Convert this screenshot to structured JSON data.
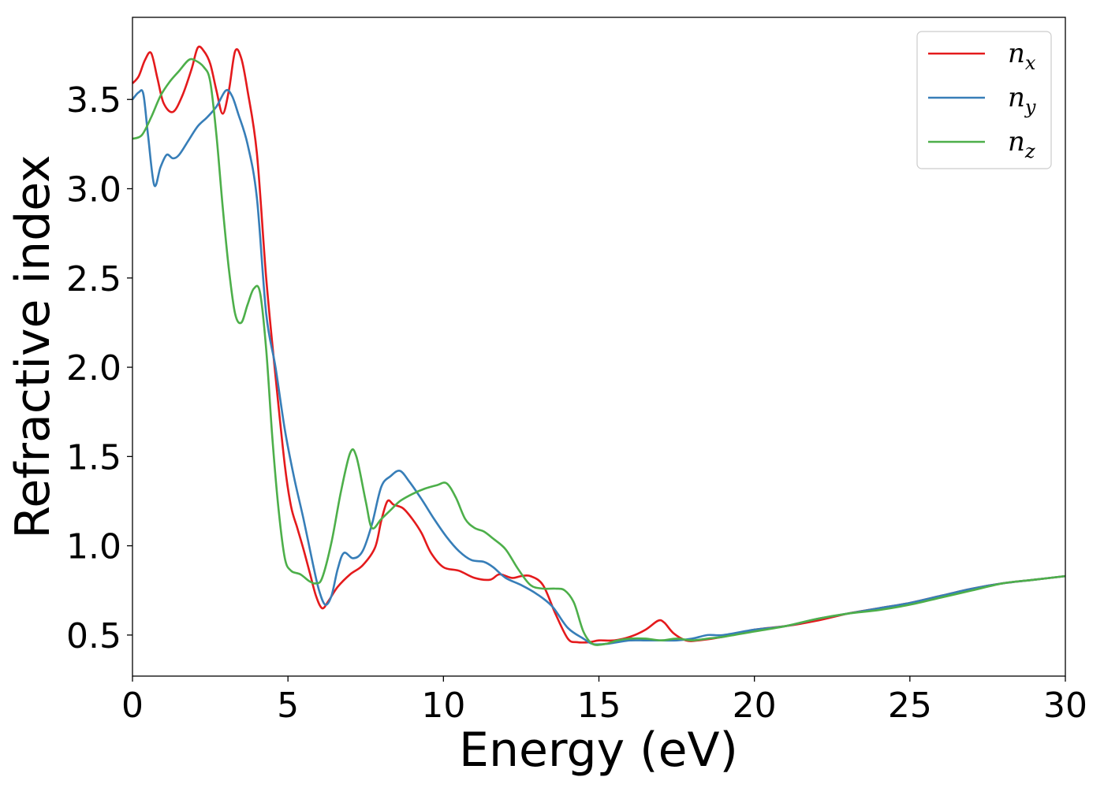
{
  "chart_data": {
    "type": "line",
    "xlabel": "Energy (eV)",
    "ylabel": "Refractive index",
    "xlim": [
      0,
      30
    ],
    "ylim": [
      0.27,
      3.96
    ],
    "xticks": [
      0,
      5,
      10,
      15,
      20,
      25,
      30
    ],
    "yticks": [
      0.5,
      1.0,
      1.5,
      2.0,
      2.5,
      3.0,
      3.5
    ],
    "xtick_labels": [
      "0",
      "5",
      "10",
      "15",
      "20",
      "25",
      "30"
    ],
    "ytick_labels": [
      "0.5",
      "1.0",
      "1.5",
      "2.0",
      "2.5",
      "3.0",
      "3.5"
    ],
    "grid": false,
    "legend_position": "top-right",
    "series": [
      {
        "name": "n_x",
        "label_base": "n",
        "label_sub": "x",
        "color": "#e41a1c",
        "points": [
          [
            0,
            3.59
          ],
          [
            0.2,
            3.63
          ],
          [
            0.4,
            3.72
          ],
          [
            0.6,
            3.76
          ],
          [
            0.8,
            3.62
          ],
          [
            1.0,
            3.48
          ],
          [
            1.3,
            3.43
          ],
          [
            1.6,
            3.52
          ],
          [
            1.9,
            3.67
          ],
          [
            2.1,
            3.79
          ],
          [
            2.3,
            3.77
          ],
          [
            2.5,
            3.7
          ],
          [
            2.7,
            3.55
          ],
          [
            2.9,
            3.42
          ],
          [
            3.1,
            3.55
          ],
          [
            3.3,
            3.77
          ],
          [
            3.5,
            3.73
          ],
          [
            3.7,
            3.55
          ],
          [
            4.0,
            3.2
          ],
          [
            4.3,
            2.5
          ],
          [
            4.6,
            1.95
          ],
          [
            4.9,
            1.45
          ],
          [
            5.1,
            1.22
          ],
          [
            5.3,
            1.1
          ],
          [
            5.5,
            0.98
          ],
          [
            5.7,
            0.85
          ],
          [
            5.9,
            0.72
          ],
          [
            6.1,
            0.65
          ],
          [
            6.3,
            0.69
          ],
          [
            6.6,
            0.77
          ],
          [
            7.0,
            0.84
          ],
          [
            7.4,
            0.89
          ],
          [
            7.8,
            0.99
          ],
          [
            8.0,
            1.14
          ],
          [
            8.2,
            1.25
          ],
          [
            8.4,
            1.23
          ],
          [
            8.7,
            1.21
          ],
          [
            9.0,
            1.15
          ],
          [
            9.3,
            1.07
          ],
          [
            9.6,
            0.96
          ],
          [
            10.0,
            0.88
          ],
          [
            10.5,
            0.86
          ],
          [
            11.0,
            0.82
          ],
          [
            11.5,
            0.81
          ],
          [
            11.8,
            0.84
          ],
          [
            12.2,
            0.82
          ],
          [
            12.5,
            0.83
          ],
          [
            12.8,
            0.83
          ],
          [
            13.2,
            0.78
          ],
          [
            13.6,
            0.62
          ],
          [
            14.0,
            0.48
          ],
          [
            14.3,
            0.46
          ],
          [
            14.7,
            0.46
          ],
          [
            15.0,
            0.47
          ],
          [
            15.5,
            0.47
          ],
          [
            16.0,
            0.49
          ],
          [
            16.5,
            0.53
          ],
          [
            16.9,
            0.58
          ],
          [
            17.1,
            0.57
          ],
          [
            17.4,
            0.51
          ],
          [
            17.8,
            0.47
          ],
          [
            18.2,
            0.47
          ],
          [
            19.0,
            0.49
          ],
          [
            20.0,
            0.53
          ],
          [
            21.0,
            0.55
          ],
          [
            22.0,
            0.58
          ],
          [
            23.0,
            0.62
          ],
          [
            24.0,
            0.65
          ],
          [
            25.0,
            0.68
          ],
          [
            26.0,
            0.72
          ],
          [
            27.0,
            0.76
          ],
          [
            28.0,
            0.79
          ],
          [
            29.0,
            0.81
          ],
          [
            30.0,
            0.83
          ]
        ]
      },
      {
        "name": "n_y",
        "label_base": "n",
        "label_sub": "y",
        "color": "#377eb8",
        "points": [
          [
            0,
            3.5
          ],
          [
            0.2,
            3.54
          ],
          [
            0.35,
            3.53
          ],
          [
            0.5,
            3.3
          ],
          [
            0.7,
            3.02
          ],
          [
            0.9,
            3.12
          ],
          [
            1.1,
            3.19
          ],
          [
            1.3,
            3.17
          ],
          [
            1.5,
            3.19
          ],
          [
            1.8,
            3.27
          ],
          [
            2.1,
            3.35
          ],
          [
            2.4,
            3.4
          ],
          [
            2.7,
            3.46
          ],
          [
            3.0,
            3.55
          ],
          [
            3.2,
            3.52
          ],
          [
            3.4,
            3.42
          ],
          [
            3.7,
            3.25
          ],
          [
            4.0,
            2.95
          ],
          [
            4.3,
            2.3
          ],
          [
            4.6,
            2.0
          ],
          [
            4.9,
            1.65
          ],
          [
            5.2,
            1.38
          ],
          [
            5.5,
            1.15
          ],
          [
            5.8,
            0.9
          ],
          [
            6.0,
            0.75
          ],
          [
            6.2,
            0.67
          ],
          [
            6.4,
            0.72
          ],
          [
            6.6,
            0.87
          ],
          [
            6.8,
            0.96
          ],
          [
            7.1,
            0.93
          ],
          [
            7.4,
            0.97
          ],
          [
            7.7,
            1.12
          ],
          [
            8.0,
            1.33
          ],
          [
            8.3,
            1.39
          ],
          [
            8.6,
            1.42
          ],
          [
            8.9,
            1.36
          ],
          [
            9.3,
            1.26
          ],
          [
            9.7,
            1.15
          ],
          [
            10.1,
            1.05
          ],
          [
            10.5,
            0.97
          ],
          [
            10.9,
            0.92
          ],
          [
            11.3,
            0.91
          ],
          [
            11.6,
            0.88
          ],
          [
            12.0,
            0.82
          ],
          [
            12.5,
            0.78
          ],
          [
            13.0,
            0.73
          ],
          [
            13.5,
            0.66
          ],
          [
            14.0,
            0.54
          ],
          [
            14.5,
            0.48
          ],
          [
            14.8,
            0.45
          ],
          [
            15.2,
            0.45
          ],
          [
            15.6,
            0.46
          ],
          [
            16.0,
            0.47
          ],
          [
            16.5,
            0.47
          ],
          [
            17.0,
            0.47
          ],
          [
            17.5,
            0.47
          ],
          [
            18.0,
            0.48
          ],
          [
            18.5,
            0.5
          ],
          [
            19.0,
            0.5
          ],
          [
            20.0,
            0.53
          ],
          [
            21.0,
            0.55
          ],
          [
            22.0,
            0.59
          ],
          [
            23.0,
            0.62
          ],
          [
            24.0,
            0.65
          ],
          [
            25.0,
            0.68
          ],
          [
            26.0,
            0.72
          ],
          [
            27.0,
            0.76
          ],
          [
            28.0,
            0.79
          ],
          [
            29.0,
            0.81
          ],
          [
            30.0,
            0.83
          ]
        ]
      },
      {
        "name": "n_z",
        "label_base": "n",
        "label_sub": "z",
        "color": "#4daf4a",
        "points": [
          [
            0,
            3.28
          ],
          [
            0.3,
            3.3
          ],
          [
            0.6,
            3.4
          ],
          [
            0.9,
            3.52
          ],
          [
            1.2,
            3.6
          ],
          [
            1.5,
            3.66
          ],
          [
            1.8,
            3.72
          ],
          [
            2.0,
            3.72
          ],
          [
            2.3,
            3.68
          ],
          [
            2.5,
            3.6
          ],
          [
            2.7,
            3.3
          ],
          [
            2.9,
            2.9
          ],
          [
            3.1,
            2.55
          ],
          [
            3.3,
            2.3
          ],
          [
            3.5,
            2.25
          ],
          [
            3.7,
            2.35
          ],
          [
            3.9,
            2.44
          ],
          [
            4.1,
            2.42
          ],
          [
            4.3,
            2.1
          ],
          [
            4.5,
            1.6
          ],
          [
            4.7,
            1.2
          ],
          [
            4.9,
            0.93
          ],
          [
            5.1,
            0.86
          ],
          [
            5.4,
            0.84
          ],
          [
            5.7,
            0.8
          ],
          [
            5.9,
            0.79
          ],
          [
            6.1,
            0.82
          ],
          [
            6.4,
            1.02
          ],
          [
            6.7,
            1.3
          ],
          [
            7.0,
            1.52
          ],
          [
            7.2,
            1.5
          ],
          [
            7.5,
            1.25
          ],
          [
            7.7,
            1.1
          ],
          [
            8.0,
            1.15
          ],
          [
            8.3,
            1.2
          ],
          [
            8.6,
            1.25
          ],
          [
            9.0,
            1.29
          ],
          [
            9.4,
            1.32
          ],
          [
            9.8,
            1.34
          ],
          [
            10.1,
            1.35
          ],
          [
            10.4,
            1.27
          ],
          [
            10.7,
            1.15
          ],
          [
            11.0,
            1.1
          ],
          [
            11.3,
            1.08
          ],
          [
            11.6,
            1.04
          ],
          [
            12.0,
            0.98
          ],
          [
            12.4,
            0.87
          ],
          [
            12.8,
            0.78
          ],
          [
            13.2,
            0.76
          ],
          [
            13.6,
            0.76
          ],
          [
            13.9,
            0.75
          ],
          [
            14.2,
            0.68
          ],
          [
            14.5,
            0.52
          ],
          [
            14.8,
            0.45
          ],
          [
            15.2,
            0.45
          ],
          [
            15.6,
            0.47
          ],
          [
            16.0,
            0.48
          ],
          [
            16.5,
            0.48
          ],
          [
            17.0,
            0.47
          ],
          [
            17.5,
            0.48
          ],
          [
            18.0,
            0.47
          ],
          [
            18.5,
            0.48
          ],
          [
            19.0,
            0.49
          ],
          [
            20.0,
            0.52
          ],
          [
            21.0,
            0.55
          ],
          [
            22.0,
            0.59
          ],
          [
            23.0,
            0.62
          ],
          [
            24.0,
            0.64
          ],
          [
            25.0,
            0.67
          ],
          [
            26.0,
            0.71
          ],
          [
            27.0,
            0.75
          ],
          [
            28.0,
            0.79
          ],
          [
            29.0,
            0.81
          ],
          [
            30.0,
            0.83
          ]
        ]
      }
    ]
  }
}
